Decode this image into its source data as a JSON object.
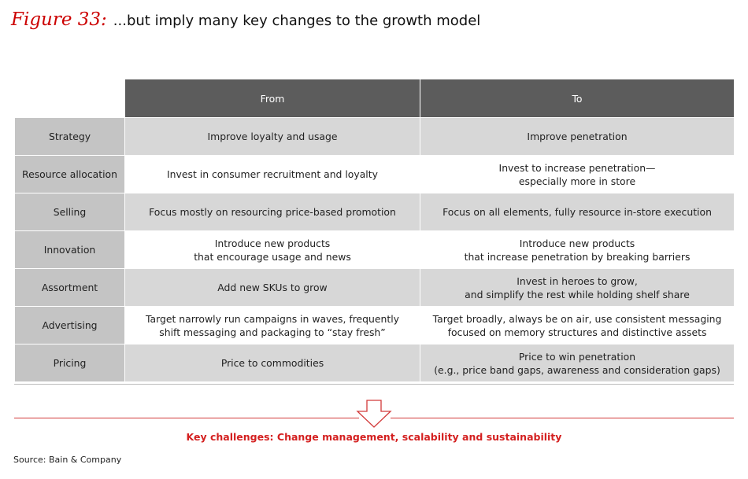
{
  "title": {
    "figure_label": "Figure 33:",
    "text": "...but imply many key changes to the growth model"
  },
  "table": {
    "headers": [
      "From",
      "To"
    ],
    "rows": [
      {
        "label": "Strategy",
        "from": [
          "Improve loyalty and usage"
        ],
        "to": [
          "Improve penetration"
        ]
      },
      {
        "label": "Resource allocation",
        "from": [
          "Invest in consumer recruitment and loyalty"
        ],
        "to": [
          "Invest to increase penetration—",
          "especially more in store"
        ]
      },
      {
        "label": "Selling",
        "from": [
          "Focus mostly on resourcing price-based promotion"
        ],
        "to": [
          "Focus on all elements, fully resource in-store execution"
        ]
      },
      {
        "label": "Innovation",
        "from": [
          "Introduce new products",
          "that encourage usage and news"
        ],
        "to": [
          "Introduce new products",
          "that increase penetration by breaking barriers"
        ]
      },
      {
        "label": "Assortment",
        "from": [
          "Add new SKUs to grow"
        ],
        "to": [
          "Invest in heroes to grow,",
          "and simplify the rest while holding shelf share"
        ]
      },
      {
        "label": "Advertising",
        "from": [
          "Target narrowly run campaigns in waves, frequently",
          "shift messaging and packaging to “stay fresh”"
        ],
        "to": [
          "Target broadly, always be on air, use consistent messaging",
          "focused on memory structures and distinctive assets"
        ]
      },
      {
        "label": "Pricing",
        "from": [
          "Price to commodities"
        ],
        "to": [
          "Price to win penetration",
          "(e.g., price band gaps, awareness and consideration gaps)"
        ]
      }
    ]
  },
  "arrow_icon": "down-arrow-icon",
  "key_challenges": "Key challenges: Change management, scalability and sustainability",
  "source": "Source: Bain & Company",
  "colors": {
    "accent_red": "#d42020",
    "header_gray": "#5c5c5c",
    "label_gray": "#c4c4c4",
    "shaded_row": "#d7d7d7"
  }
}
